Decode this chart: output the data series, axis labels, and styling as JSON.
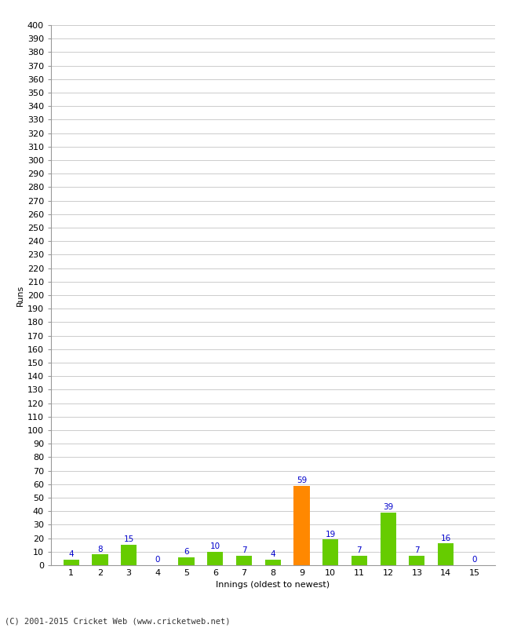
{
  "xlabel": "Innings (oldest to newest)",
  "ylabel": "Runs",
  "categories": [
    1,
    2,
    3,
    4,
    5,
    6,
    7,
    8,
    9,
    10,
    11,
    12,
    13,
    14,
    15
  ],
  "values": [
    4,
    8,
    15,
    0,
    6,
    10,
    7,
    4,
    59,
    19,
    7,
    39,
    7,
    16,
    0
  ],
  "bar_colors": [
    "#66cc00",
    "#66cc00",
    "#66cc00",
    "#66cc00",
    "#66cc00",
    "#66cc00",
    "#66cc00",
    "#66cc00",
    "#ff8800",
    "#66cc00",
    "#66cc00",
    "#66cc00",
    "#66cc00",
    "#66cc00",
    "#66cc00"
  ],
  "label_color": "#0000cc",
  "ylim": [
    0,
    400
  ],
  "yticks": [
    0,
    10,
    20,
    30,
    40,
    50,
    60,
    70,
    80,
    90,
    100,
    110,
    120,
    130,
    140,
    150,
    160,
    170,
    180,
    190,
    200,
    210,
    220,
    230,
    240,
    250,
    260,
    270,
    280,
    290,
    300,
    310,
    320,
    330,
    340,
    350,
    360,
    370,
    380,
    390,
    400
  ],
  "background_color": "#ffffff",
  "grid_color": "#cccccc",
  "footer": "(C) 2001-2015 Cricket Web (www.cricketweb.net)",
  "label_fontsize": 7.5,
  "axis_fontsize": 8,
  "ylabel_fontsize": 8,
  "bar_width": 0.55
}
